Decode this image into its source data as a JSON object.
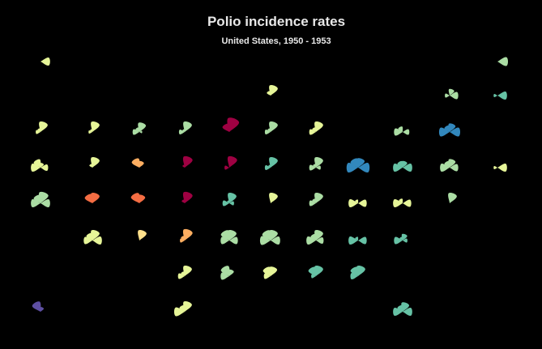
{
  "chart_data": {
    "type": "glyph",
    "title": "Polio incidence rates",
    "subtitle": "United States, 1950 - 1953",
    "vlim": [
      0,
      40
    ],
    "glyphs": [
      {
        "values": [
          0,
          0,
          0,
          20
        ],
        "color": "#e6f598"
      },
      {
        "values": [
          0,
          0,
          0,
          22
        ],
        "color": "#abdda4"
      },
      {
        "values": [
          0,
          10,
          22,
          0
        ],
        "color": "#e6f598"
      },
      {
        "values": [
          10,
          0,
          14,
          18
        ],
        "color": "#abdda4"
      },
      {
        "values": [
          8,
          0,
          0,
          20
        ],
        "color": "#66c2a5"
      },
      {
        "values": [
          10,
          8,
          22,
          0
        ],
        "color": "#e6f598"
      },
      {
        "values": [
          8,
          6,
          22,
          0
        ],
        "color": "#e6f598"
      },
      {
        "values": [
          14,
          10,
          20,
          6
        ],
        "color": "#abdda4"
      },
      {
        "values": [
          12,
          6,
          22,
          0
        ],
        "color": "#abdda4"
      },
      {
        "values": [
          0,
          18,
          30,
          0
        ],
        "color": "#9e0142"
      },
      {
        "values": [
          12,
          8,
          22,
          0
        ],
        "color": "#abdda4"
      },
      {
        "values": [
          14,
          10,
          22,
          0
        ],
        "color": "#e6f598"
      },
      {
        "values": [
          18,
          12,
          0,
          14
        ],
        "color": "#abdda4"
      },
      {
        "values": [
          22,
          14,
          18,
          22
        ],
        "color": "#3288bd"
      },
      {
        "values": [
          20,
          18,
          10,
          16
        ],
        "color": "#e6f598"
      },
      {
        "values": [
          0,
          8,
          22,
          0
        ],
        "color": "#e6f598"
      },
      {
        "values": [
          0,
          20,
          14,
          0
        ],
        "color": "#fdae61"
      },
      {
        "values": [
          0,
          6,
          24,
          0
        ],
        "color": "#9e0142"
      },
      {
        "values": [
          10,
          0,
          24,
          0
        ],
        "color": "#9e0142"
      },
      {
        "values": [
          12,
          6,
          22,
          0
        ],
        "color": "#66c2a5"
      },
      {
        "values": [
          14,
          8,
          22,
          10
        ],
        "color": "#abdda4"
      },
      {
        "values": [
          24,
          20,
          20,
          24
        ],
        "color": "#3288bd"
      },
      {
        "values": [
          20,
          14,
          14,
          20
        ],
        "color": "#66c2a5"
      },
      {
        "values": [
          20,
          14,
          18,
          18
        ],
        "color": "#abdda4"
      },
      {
        "values": [
          8,
          0,
          0,
          20
        ],
        "color": "#e6f598"
      },
      {
        "values": [
          20,
          18,
          24,
          20
        ],
        "color": "#abdda4"
      },
      {
        "values": [
          0,
          20,
          22,
          0
        ],
        "color": "#f46d43"
      },
      {
        "values": [
          0,
          22,
          18,
          0
        ],
        "color": "#f46d43"
      },
      {
        "values": [
          0,
          8,
          24,
          0
        ],
        "color": "#9e0142"
      },
      {
        "values": [
          14,
          6,
          22,
          10
        ],
        "color": "#66c2a5"
      },
      {
        "values": [
          0,
          0,
          22,
          0
        ],
        "color": "#e6f598"
      },
      {
        "values": [
          14,
          10,
          22,
          0
        ],
        "color": "#abdda4"
      },
      {
        "values": [
          20,
          8,
          0,
          18
        ],
        "color": "#e6f598"
      },
      {
        "values": [
          20,
          10,
          0,
          18
        ],
        "color": "#e6f598"
      },
      {
        "values": [
          0,
          0,
          22,
          0
        ],
        "color": "#abdda4"
      },
      {
        "values": [
          18,
          16,
          22,
          20
        ],
        "color": "#e6f598"
      },
      {
        "values": [
          0,
          0,
          22,
          0
        ],
        "color": "#fee08b"
      },
      {
        "values": [
          10,
          10,
          24,
          0
        ],
        "color": "#fdae61"
      },
      {
        "values": [
          18,
          22,
          22,
          18
        ],
        "color": "#abdda4"
      },
      {
        "values": [
          22,
          22,
          22,
          20
        ],
        "color": "#abdda4"
      },
      {
        "values": [
          20,
          14,
          22,
          16
        ],
        "color": "#abdda4"
      },
      {
        "values": [
          20,
          8,
          0,
          18
        ],
        "color": "#66c2a5"
      },
      {
        "values": [
          18,
          8,
          14,
          10
        ],
        "color": "#66c2a5"
      },
      {
        "values": [
          14,
          10,
          22,
          0
        ],
        "color": "#e6f598"
      },
      {
        "values": [
          18,
          22,
          14,
          0
        ],
        "color": "#abdda4"
      },
      {
        "values": [
          14,
          20,
          20,
          0
        ],
        "color": "#e6f598"
      },
      {
        "values": [
          10,
          20,
          22,
          0
        ],
        "color": "#66c2a5"
      },
      {
        "values": [
          16,
          20,
          22,
          0
        ],
        "color": "#66c2a5"
      },
      {
        "values": [
          0,
          22,
          10,
          0
        ],
        "color": "#5e4fa2"
      },
      {
        "values": [
          22,
          14,
          22,
          0
        ],
        "color": "#e6f598"
      },
      {
        "values": [
          20,
          14,
          20,
          20
        ],
        "color": "#66c2a5"
      }
    ]
  }
}
